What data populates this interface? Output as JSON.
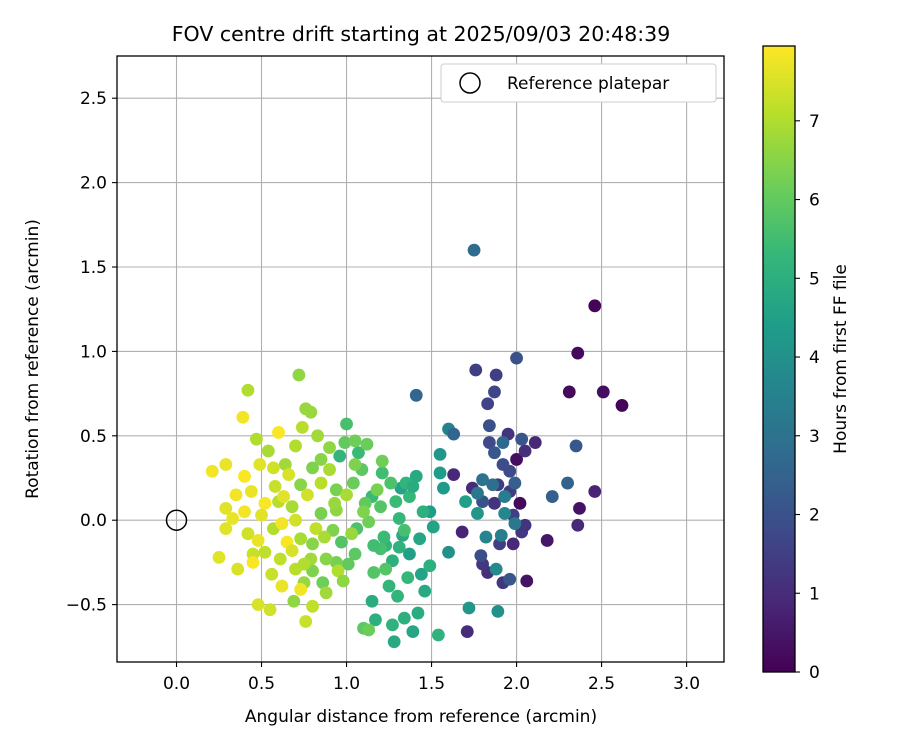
{
  "chart_data": {
    "type": "scatter",
    "title": "FOV centre drift starting at 2025/09/03 20:48:39",
    "xlabel": "Angular distance from reference (arcmin)",
    "ylabel": "Rotation from reference (arcmin)",
    "xlim": [
      -0.35,
      3.22
    ],
    "ylim": [
      -0.84,
      2.75
    ],
    "xticks": [
      "0.0",
      "0.5",
      "1.0",
      "1.5",
      "2.0",
      "2.5",
      "3.0"
    ],
    "yticks": [
      "−0.5",
      "0.0",
      "0.5",
      "1.0",
      "1.5",
      "2.0",
      "2.5"
    ],
    "grid": true,
    "legend": {
      "placement": "top-right",
      "entries": [
        {
          "label": "Reference platepar",
          "marker": "open-circle"
        }
      ]
    },
    "reference_point": {
      "x": 0.0,
      "y": 0.0
    },
    "colorbar": {
      "label": "Hours from first FF file",
      "colormap": "viridis",
      "range": [
        0,
        7.95
      ],
      "ticks": [
        "0",
        "1",
        "2",
        "3",
        "4",
        "5",
        "6",
        "7"
      ]
    },
    "colormap_stops": [
      "#440154",
      "#482878",
      "#3e4989",
      "#31688e",
      "#26828e",
      "#1f9e89",
      "#35b779",
      "#6ece58",
      "#b5de2b",
      "#fde725"
    ],
    "points": [
      {
        "x": 2.46,
        "y": 1.27,
        "h": 0.1
      },
      {
        "x": 2.36,
        "y": 0.99,
        "h": 0.2
      },
      {
        "x": 2.51,
        "y": 0.76,
        "h": 0.3
      },
      {
        "x": 2.31,
        "y": 0.76,
        "h": 0.2
      },
      {
        "x": 2.62,
        "y": 0.68,
        "h": 0.1
      },
      {
        "x": 2.0,
        "y": 0.36,
        "h": 0.3
      },
      {
        "x": 2.02,
        "y": 0.1,
        "h": 0.2
      },
      {
        "x": 2.06,
        "y": -0.36,
        "h": 0.4
      },
      {
        "x": 2.18,
        "y": -0.12,
        "h": 0.5
      },
      {
        "x": 2.37,
        "y": 0.07,
        "h": 0.4
      },
      {
        "x": 2.46,
        "y": 0.17,
        "h": 0.8
      },
      {
        "x": 2.36,
        "y": -0.03,
        "h": 0.9
      },
      {
        "x": 2.11,
        "y": 0.46,
        "h": 0.9
      },
      {
        "x": 1.98,
        "y": -0.14,
        "h": 0.9
      },
      {
        "x": 1.74,
        "y": 0.19,
        "h": 1.0
      },
      {
        "x": 1.63,
        "y": 0.27,
        "h": 0.9
      },
      {
        "x": 1.71,
        "y": -0.66,
        "h": 1.0
      },
      {
        "x": 1.68,
        "y": -0.07,
        "h": 0.8
      },
      {
        "x": 1.95,
        "y": 0.51,
        "h": 1.2
      },
      {
        "x": 2.05,
        "y": 0.41,
        "h": 1.1
      },
      {
        "x": 1.89,
        "y": 0.21,
        "h": 1.4
      },
      {
        "x": 1.83,
        "y": -0.31,
        "h": 1.1
      },
      {
        "x": 1.8,
        "y": -0.26,
        "h": 1.3
      },
      {
        "x": 1.92,
        "y": -0.37,
        "h": 1.3
      },
      {
        "x": 2.03,
        "y": -0.07,
        "h": 1.3
      },
      {
        "x": 1.98,
        "y": 0.03,
        "h": 1.5
      },
      {
        "x": 1.9,
        "y": -0.14,
        "h": 1.5
      },
      {
        "x": 1.87,
        "y": 0.1,
        "h": 1.2
      },
      {
        "x": 1.96,
        "y": 0.17,
        "h": 1.4
      },
      {
        "x": 2.05,
        "y": -0.03,
        "h": 1.2
      },
      {
        "x": 1.76,
        "y": 0.89,
        "h": 1.5
      },
      {
        "x": 1.88,
        "y": 0.86,
        "h": 1.5
      },
      {
        "x": 1.87,
        "y": 0.76,
        "h": 1.7
      },
      {
        "x": 1.83,
        "y": 0.69,
        "h": 1.6
      },
      {
        "x": 1.84,
        "y": 0.56,
        "h": 2.0
      },
      {
        "x": 1.84,
        "y": 0.46,
        "h": 1.8
      },
      {
        "x": 1.87,
        "y": 0.4,
        "h": 2.2
      },
      {
        "x": 1.92,
        "y": 0.33,
        "h": 1.9
      },
      {
        "x": 1.96,
        "y": 0.29,
        "h": 1.8
      },
      {
        "x": 1.8,
        "y": 0.11,
        "h": 2.0
      },
      {
        "x": 1.79,
        "y": -0.21,
        "h": 1.9
      },
      {
        "x": 1.96,
        "y": -0.35,
        "h": 2.2
      },
      {
        "x": 2.0,
        "y": 0.96,
        "h": 2.0
      },
      {
        "x": 2.03,
        "y": 0.48,
        "h": 2.1
      },
      {
        "x": 1.99,
        "y": 0.22,
        "h": 2.4
      },
      {
        "x": 2.21,
        "y": 0.14,
        "h": 2.4
      },
      {
        "x": 2.3,
        "y": 0.22,
        "h": 2.5
      },
      {
        "x": 2.35,
        "y": 0.44,
        "h": 2.2
      },
      {
        "x": 1.75,
        "y": 1.6,
        "h": 2.8
      },
      {
        "x": 1.41,
        "y": 0.74,
        "h": 2.6
      },
      {
        "x": 1.6,
        "y": 0.54,
        "h": 3.5
      },
      {
        "x": 1.63,
        "y": 0.51,
        "h": 2.6
      },
      {
        "x": 1.92,
        "y": 0.46,
        "h": 2.7
      },
      {
        "x": 1.86,
        "y": 0.21,
        "h": 2.9
      },
      {
        "x": 1.8,
        "y": 0.24,
        "h": 3.0
      },
      {
        "x": 1.77,
        "y": 0.16,
        "h": 3.2
      },
      {
        "x": 1.93,
        "y": 0.14,
        "h": 3.3
      },
      {
        "x": 1.99,
        "y": -0.02,
        "h": 3.2
      },
      {
        "x": 1.91,
        "y": -0.09,
        "h": 3.4
      },
      {
        "x": 1.82,
        "y": -0.1,
        "h": 3.6
      },
      {
        "x": 1.93,
        "y": 0.04,
        "h": 3.7
      },
      {
        "x": 1.88,
        "y": -0.29,
        "h": 3.8
      },
      {
        "x": 1.89,
        "y": -0.54,
        "h": 4.0
      },
      {
        "x": 1.72,
        "y": -0.52,
        "h": 4.2
      },
      {
        "x": 1.6,
        "y": -0.19,
        "h": 4.0
      },
      {
        "x": 1.77,
        "y": 0.04,
        "h": 4.2
      },
      {
        "x": 1.55,
        "y": 0.39,
        "h": 4.2
      },
      {
        "x": 1.55,
        "y": 0.28,
        "h": 4.4
      },
      {
        "x": 1.57,
        "y": 0.19,
        "h": 4.3
      },
      {
        "x": 1.7,
        "y": 0.11,
        "h": 4.5
      },
      {
        "x": 1.49,
        "y": 0.05,
        "h": 4.4
      },
      {
        "x": 1.51,
        "y": -0.04,
        "h": 4.6
      },
      {
        "x": 1.41,
        "y": 0.26,
        "h": 4.8
      },
      {
        "x": 1.32,
        "y": 0.19,
        "h": 4.6
      },
      {
        "x": 1.43,
        "y": -0.11,
        "h": 4.7
      },
      {
        "x": 1.33,
        "y": -0.09,
        "h": 4.8
      },
      {
        "x": 1.37,
        "y": -0.2,
        "h": 4.5
      },
      {
        "x": 1.44,
        "y": -0.32,
        "h": 4.6
      },
      {
        "x": 1.46,
        "y": -0.42,
        "h": 4.8
      },
      {
        "x": 1.49,
        "y": -0.27,
        "h": 5.0
      },
      {
        "x": 1.54,
        "y": -0.68,
        "h": 5.1
      },
      {
        "x": 1.39,
        "y": -0.66,
        "h": 4.7
      },
      {
        "x": 1.42,
        "y": -0.55,
        "h": 4.9
      },
      {
        "x": 1.34,
        "y": -0.58,
        "h": 5.0
      },
      {
        "x": 1.28,
        "y": -0.72,
        "h": 4.8
      },
      {
        "x": 1.27,
        "y": -0.62,
        "h": 5.1
      },
      {
        "x": 1.15,
        "y": -0.48,
        "h": 4.9
      },
      {
        "x": 1.17,
        "y": -0.59,
        "h": 5.0
      },
      {
        "x": 1.25,
        "y": -0.39,
        "h": 5.2
      },
      {
        "x": 1.27,
        "y": -0.24,
        "h": 5.0
      },
      {
        "x": 1.23,
        "y": -0.15,
        "h": 5.2
      },
      {
        "x": 1.31,
        "y": -0.16,
        "h": 5.1
      },
      {
        "x": 1.36,
        "y": -0.34,
        "h": 5.3
      },
      {
        "x": 1.22,
        "y": -0.1,
        "h": 5.4
      },
      {
        "x": 1.31,
        "y": 0.01,
        "h": 5.3
      },
      {
        "x": 1.29,
        "y": 0.11,
        "h": 5.4
      },
      {
        "x": 1.35,
        "y": 0.22,
        "h": 5.2
      },
      {
        "x": 1.37,
        "y": 0.14,
        "h": 5.3
      },
      {
        "x": 1.15,
        "y": 0.14,
        "h": 5.4
      },
      {
        "x": 1.21,
        "y": 0.28,
        "h": 5.5
      },
      {
        "x": 1.07,
        "y": 0.4,
        "h": 5.4
      },
      {
        "x": 1.0,
        "y": 0.57,
        "h": 5.6
      },
      {
        "x": 0.96,
        "y": 0.38,
        "h": 5.2
      },
      {
        "x": 1.26,
        "y": 0.22,
        "h": 5.7
      },
      {
        "x": 1.34,
        "y": -0.06,
        "h": 5.6
      },
      {
        "x": 1.2,
        "y": -0.17,
        "h": 5.6
      },
      {
        "x": 1.16,
        "y": -0.31,
        "h": 5.8
      },
      {
        "x": 1.1,
        "y": -0.64,
        "h": 5.9
      },
      {
        "x": 1.13,
        "y": -0.65,
        "h": 6.1
      },
      {
        "x": 1.23,
        "y": -0.29,
        "h": 5.8
      },
      {
        "x": 1.05,
        "y": -0.2,
        "h": 5.9
      },
      {
        "x": 1.01,
        "y": -0.26,
        "h": 6.0
      },
      {
        "x": 0.97,
        "y": -0.13,
        "h": 5.8
      },
      {
        "x": 1.06,
        "y": -0.05,
        "h": 5.7
      },
      {
        "x": 1.11,
        "y": 0.1,
        "h": 6.0
      },
      {
        "x": 1.04,
        "y": 0.22,
        "h": 6.1
      },
      {
        "x": 1.09,
        "y": 0.3,
        "h": 5.9
      },
      {
        "x": 0.99,
        "y": 0.46,
        "h": 6.0
      },
      {
        "x": 1.05,
        "y": 0.47,
        "h": 6.2
      },
      {
        "x": 1.12,
        "y": 0.45,
        "h": 6.1
      },
      {
        "x": 1.21,
        "y": 0.35,
        "h": 6.2
      },
      {
        "x": 1.18,
        "y": 0.18,
        "h": 6.3
      },
      {
        "x": 1.13,
        "y": -0.01,
        "h": 6.2
      },
      {
        "x": 0.94,
        "y": 0.18,
        "h": 6.3
      },
      {
        "x": 0.92,
        "y": -0.06,
        "h": 6.4
      },
      {
        "x": 0.94,
        "y": -0.25,
        "h": 6.3
      },
      {
        "x": 0.86,
        "y": -0.37,
        "h": 6.2
      },
      {
        "x": 0.8,
        "y": -0.3,
        "h": 6.4
      },
      {
        "x": 0.88,
        "y": -0.23,
        "h": 6.5
      },
      {
        "x": 0.8,
        "y": -0.14,
        "h": 6.5
      },
      {
        "x": 0.85,
        "y": 0.04,
        "h": 6.3
      },
      {
        "x": 0.73,
        "y": 0.21,
        "h": 6.5
      },
      {
        "x": 0.8,
        "y": 0.31,
        "h": 6.4
      },
      {
        "x": 0.85,
        "y": 0.36,
        "h": 6.5
      },
      {
        "x": 0.79,
        "y": 0.64,
        "h": 6.7
      },
      {
        "x": 0.72,
        "y": 0.86,
        "h": 6.6
      },
      {
        "x": 0.83,
        "y": 0.5,
        "h": 6.8
      },
      {
        "x": 0.76,
        "y": 0.66,
        "h": 6.7
      },
      {
        "x": 0.94,
        "y": 0.06,
        "h": 6.6
      },
      {
        "x": 0.88,
        "y": -0.43,
        "h": 6.8
      },
      {
        "x": 0.75,
        "y": -0.37,
        "h": 6.7
      },
      {
        "x": 0.69,
        "y": -0.48,
        "h": 6.6
      },
      {
        "x": 0.79,
        "y": -0.23,
        "h": 6.8
      },
      {
        "x": 0.73,
        "y": -0.11,
        "h": 6.9
      },
      {
        "x": 0.68,
        "y": 0.08,
        "h": 6.9
      },
      {
        "x": 0.64,
        "y": 0.33,
        "h": 6.8
      },
      {
        "x": 0.54,
        "y": 0.41,
        "h": 6.9
      },
      {
        "x": 0.47,
        "y": 0.48,
        "h": 7.0
      },
      {
        "x": 0.42,
        "y": 0.77,
        "h": 7.0
      },
      {
        "x": 0.74,
        "y": 0.55,
        "h": 7.1
      },
      {
        "x": 0.7,
        "y": 0.44,
        "h": 7.0
      },
      {
        "x": 0.6,
        "y": 0.11,
        "h": 7.1
      },
      {
        "x": 0.57,
        "y": -0.05,
        "h": 7.0
      },
      {
        "x": 0.52,
        "y": -0.19,
        "h": 7.2
      },
      {
        "x": 0.61,
        "y": -0.23,
        "h": 7.2
      },
      {
        "x": 0.7,
        "y": -0.29,
        "h": 7.1
      },
      {
        "x": 0.8,
        "y": -0.51,
        "h": 7.2
      },
      {
        "x": 0.76,
        "y": -0.6,
        "h": 7.3
      },
      {
        "x": 0.55,
        "y": -0.53,
        "h": 7.4
      },
      {
        "x": 0.48,
        "y": -0.5,
        "h": 7.5
      },
      {
        "x": 0.56,
        "y": -0.32,
        "h": 7.3
      },
      {
        "x": 0.45,
        "y": -0.2,
        "h": 7.3
      },
      {
        "x": 0.42,
        "y": -0.08,
        "h": 7.4
      },
      {
        "x": 0.36,
        "y": -0.29,
        "h": 7.5
      },
      {
        "x": 0.25,
        "y": -0.22,
        "h": 7.6
      },
      {
        "x": 0.29,
        "y": -0.05,
        "h": 7.6
      },
      {
        "x": 0.33,
        "y": 0.01,
        "h": 7.7
      },
      {
        "x": 0.29,
        "y": 0.07,
        "h": 7.6
      },
      {
        "x": 0.21,
        "y": 0.29,
        "h": 7.8
      },
      {
        "x": 0.29,
        "y": 0.33,
        "h": 7.7
      },
      {
        "x": 0.39,
        "y": 0.61,
        "h": 7.8
      },
      {
        "x": 0.49,
        "y": 0.33,
        "h": 7.6
      },
      {
        "x": 0.44,
        "y": 0.17,
        "h": 7.7
      },
      {
        "x": 0.52,
        "y": 0.1,
        "h": 7.9
      },
      {
        "x": 0.62,
        "y": -0.02,
        "h": 7.8
      },
      {
        "x": 0.65,
        "y": -0.13,
        "h": 7.9
      },
      {
        "x": 0.73,
        "y": -0.41,
        "h": 7.8
      },
      {
        "x": 0.6,
        "y": 0.52,
        "h": 7.9
      },
      {
        "x": 0.4,
        "y": 0.26,
        "h": 7.9
      },
      {
        "x": 0.45,
        "y": -0.25,
        "h": 7.9
      },
      {
        "x": 0.66,
        "y": 0.27,
        "h": 7.5
      },
      {
        "x": 0.7,
        "y": 0.0,
        "h": 7.4
      },
      {
        "x": 0.85,
        "y": 0.22,
        "h": 7.1
      },
      {
        "x": 0.9,
        "y": 0.3,
        "h": 6.9
      },
      {
        "x": 1.0,
        "y": 0.15,
        "h": 6.9
      },
      {
        "x": 0.95,
        "y": -0.3,
        "h": 7.0
      },
      {
        "x": 0.82,
        "y": -0.05,
        "h": 7.2
      },
      {
        "x": 0.58,
        "y": 0.2,
        "h": 7.3
      },
      {
        "x": 0.5,
        "y": 0.03,
        "h": 7.6
      },
      {
        "x": 0.4,
        "y": 0.05,
        "h": 7.8
      },
      {
        "x": 0.35,
        "y": 0.15,
        "h": 7.8
      },
      {
        "x": 0.62,
        "y": -0.39,
        "h": 7.7
      },
      {
        "x": 0.77,
        "y": 0.15,
        "h": 7.4
      },
      {
        "x": 1.03,
        "y": -0.08,
        "h": 6.7
      },
      {
        "x": 1.1,
        "y": 0.05,
        "h": 6.4
      },
      {
        "x": 0.98,
        "y": -0.36,
        "h": 6.6
      },
      {
        "x": 0.9,
        "y": 0.43,
        "h": 6.6
      },
      {
        "x": 0.68,
        "y": -0.18,
        "h": 7.5
      },
      {
        "x": 1.39,
        "y": 0.2,
        "h": 4.9
      },
      {
        "x": 1.45,
        "y": 0.05,
        "h": 5.0
      },
      {
        "x": 1.16,
        "y": -0.15,
        "h": 5.5
      },
      {
        "x": 1.3,
        "y": -0.45,
        "h": 5.2
      },
      {
        "x": 1.2,
        "y": 0.08,
        "h": 5.8
      },
      {
        "x": 0.93,
        "y": 0.1,
        "h": 6.7
      },
      {
        "x": 0.75,
        "y": -0.26,
        "h": 7.0
      },
      {
        "x": 0.57,
        "y": 0.31,
        "h": 7.4
      },
      {
        "x": 1.05,
        "y": 0.33,
        "h": 6.4
      },
      {
        "x": 0.87,
        "y": -0.1,
        "h": 6.9
      },
      {
        "x": 0.63,
        "y": 0.14,
        "h": 7.6
      },
      {
        "x": 0.48,
        "y": -0.12,
        "h": 7.7
      }
    ]
  }
}
